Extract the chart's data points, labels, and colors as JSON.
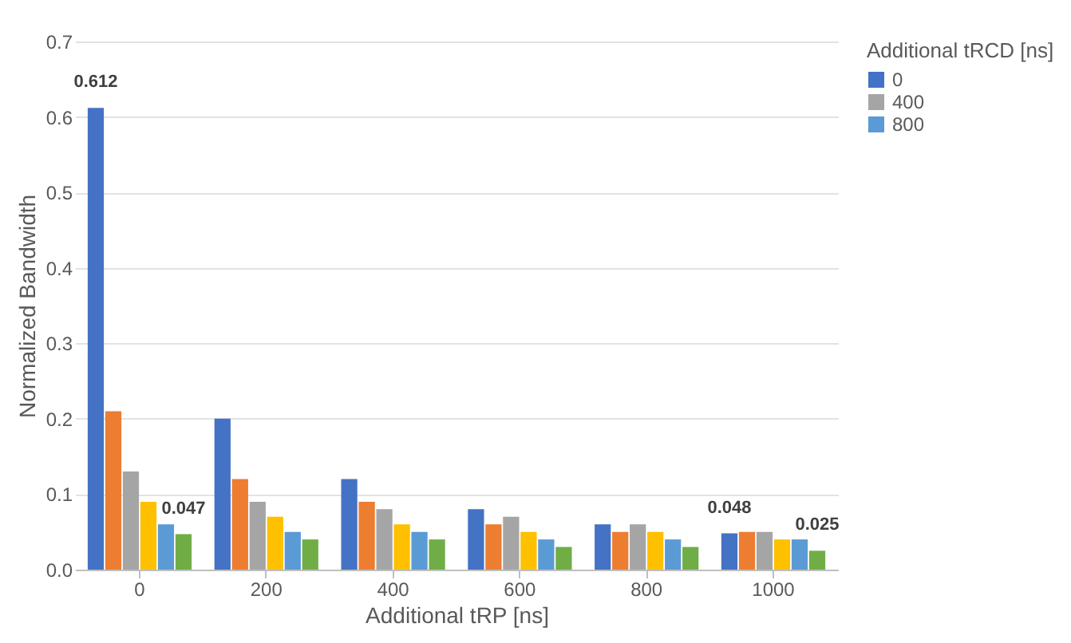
{
  "chart_data": {
    "type": "bar",
    "xlabel": "Additional tRP [ns]",
    "ylabel": "Normalized Bandwidth",
    "legend_title": "Additional tRCD [ns]",
    "legend": "right",
    "grid": "y",
    "categories": [
      "0",
      "200",
      "400",
      "600",
      "800",
      "1000"
    ],
    "ylim": [
      0,
      0.7
    ],
    "yticks": [
      {
        "value": 0,
        "label": "0.0"
      },
      0.1,
      0.2,
      0.3,
      0.4,
      0.5,
      0.6,
      0.7
    ],
    "series": [
      {
        "name": "0",
        "color": "#4472c4",
        "values": [
          0.612,
          0.2,
          0.12,
          0.08,
          0.06,
          0.048
        ],
        "value_labels": [
          "0.612",
          null,
          null,
          null,
          null,
          "0.048"
        ]
      },
      {
        "color": "#ed7d31",
        "values": [
          0.21,
          0.12,
          0.09,
          0.06,
          0.05,
          0.05
        ]
      },
      {
        "name": "400",
        "color": "#a5a5a5",
        "values": [
          0.13,
          0.09,
          0.08,
          0.07,
          0.06,
          0.05
        ]
      },
      {
        "color": "#ffc000",
        "values": [
          0.09,
          0.07,
          0.06,
          0.05,
          0.05,
          0.04
        ]
      },
      {
        "name": "800",
        "color": "#5b9bd5",
        "values": [
          0.06,
          0.05,
          0.05,
          0.04,
          0.04,
          0.04
        ]
      },
      {
        "color": "#70ad47",
        "values": [
          0.047,
          0.04,
          0.04,
          0.03,
          0.03,
          0.025
        ],
        "value_labels": [
          "0.047",
          null,
          null,
          null,
          null,
          "0.025"
        ]
      }
    ]
  }
}
